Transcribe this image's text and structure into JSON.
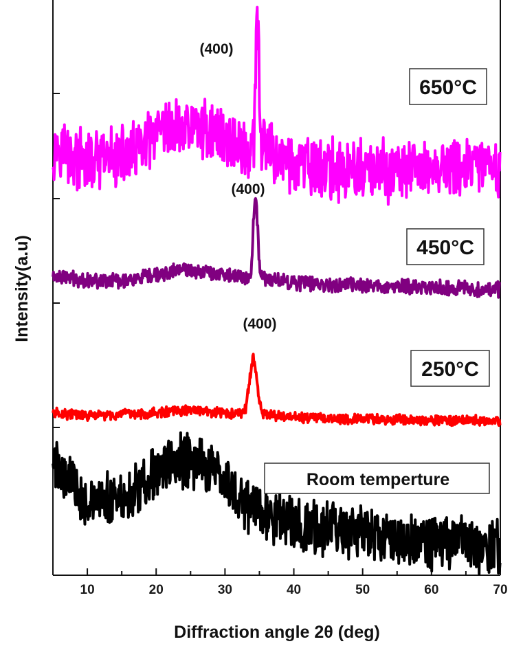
{
  "chart_data": {
    "type": "line",
    "title": "",
    "xlabel": "Diffraction angle 2θ (deg)",
    "ylabel": "Intensity(a.u)",
    "xlim": [
      5,
      70
    ],
    "x_ticks": [
      10,
      20,
      30,
      40,
      50,
      60,
      70
    ],
    "y_ticks_labeled": false,
    "grid": false,
    "legend": "none",
    "series": [
      {
        "name": "650°C",
        "color": "#ff00ff",
        "noise": 0.55,
        "peak_label": "(400)",
        "points": [
          [
            5,
            0.55
          ],
          [
            6,
            0.75
          ],
          [
            7,
            0.5
          ],
          [
            8,
            0.4
          ],
          [
            10,
            0.3
          ],
          [
            12,
            0.32
          ],
          [
            14,
            0.42
          ],
          [
            16,
            0.42
          ],
          [
            18,
            0.62
          ],
          [
            20,
            0.82
          ],
          [
            22,
            0.95
          ],
          [
            24,
            1.05
          ],
          [
            26,
            1.05
          ],
          [
            28,
            0.95
          ],
          [
            30,
            0.82
          ],
          [
            32,
            0.65
          ],
          [
            33.5,
            0.5
          ],
          [
            34.2,
            0.6
          ],
          [
            34.6,
            3.1
          ],
          [
            34.8,
            3.1
          ],
          [
            35.2,
            0.7
          ],
          [
            36,
            0.55
          ],
          [
            38,
            0.38
          ],
          [
            40,
            0.25
          ],
          [
            45,
            0.15
          ],
          [
            50,
            0.12
          ],
          [
            55,
            0.12
          ],
          [
            60,
            0.18
          ],
          [
            65,
            0.22
          ],
          [
            70,
            0.12
          ]
        ]
      },
      {
        "name": "450°C",
        "color": "#800080",
        "noise": 0.16,
        "peak_label": "(400)",
        "points": [
          [
            5,
            0.35
          ],
          [
            10,
            0.26
          ],
          [
            15,
            0.24
          ],
          [
            20,
            0.35
          ],
          [
            23,
            0.5
          ],
          [
            26,
            0.5
          ],
          [
            30,
            0.4
          ],
          [
            33,
            0.3
          ],
          [
            33.8,
            0.4
          ],
          [
            34.3,
            2.2
          ],
          [
            34.6,
            2.0
          ],
          [
            35.1,
            0.35
          ],
          [
            36,
            0.3
          ],
          [
            40,
            0.2
          ],
          [
            45,
            0.15
          ],
          [
            50,
            0.12
          ],
          [
            55,
            0.1
          ],
          [
            60,
            0.08
          ],
          [
            65,
            0.06
          ],
          [
            70,
            0.03
          ]
        ]
      },
      {
        "name": "250°C",
        "color": "#ff0000",
        "noise": 0.14,
        "peak_label": "(400)",
        "points": [
          [
            5,
            0.25
          ],
          [
            10,
            0.15
          ],
          [
            15,
            0.18
          ],
          [
            20,
            0.25
          ],
          [
            25,
            0.33
          ],
          [
            30,
            0.22
          ],
          [
            32,
            0.2
          ],
          [
            33,
            0.35
          ],
          [
            33.6,
            1.3
          ],
          [
            34.1,
            2.0
          ],
          [
            34.6,
            1.3
          ],
          [
            35.3,
            0.25
          ],
          [
            37,
            0.15
          ],
          [
            40,
            0.1
          ],
          [
            50,
            0.05
          ],
          [
            60,
            0.02
          ],
          [
            70,
            0
          ]
        ]
      },
      {
        "name": "Room temperture",
        "color": "#000000",
        "noise": 0.5,
        "peak_label": "",
        "points": [
          [
            5,
            1.8
          ],
          [
            8,
            1.4
          ],
          [
            10,
            1.0
          ],
          [
            12,
            0.92
          ],
          [
            14,
            1.05
          ],
          [
            16,
            1.1
          ],
          [
            18,
            1.35
          ],
          [
            20,
            1.6
          ],
          [
            22,
            1.8
          ],
          [
            24,
            1.85
          ],
          [
            26,
            1.85
          ],
          [
            28,
            1.7
          ],
          [
            30,
            1.4
          ],
          [
            32,
            1.1
          ],
          [
            34,
            0.9
          ],
          [
            36,
            0.75
          ],
          [
            38,
            0.65
          ],
          [
            40,
            0.55
          ],
          [
            45,
            0.4
          ],
          [
            50,
            0.3
          ],
          [
            55,
            0.22
          ],
          [
            60,
            0.17
          ],
          [
            65,
            0.1
          ],
          [
            70,
            0.05
          ]
        ]
      }
    ]
  }
}
